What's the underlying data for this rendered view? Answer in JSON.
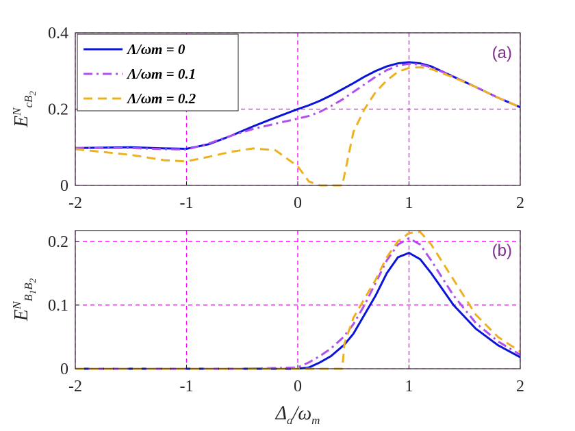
{
  "chart_data": [
    {
      "type": "line",
      "annotation": "(a)",
      "annotation_color": "#7e2f8e",
      "ylabel": [
        {
          "text": "E"
        },
        {
          "text": "N",
          "role": "sup"
        },
        {
          "text": "cB",
          "role": "sub"
        },
        {
          "text": "2",
          "role": "subsub"
        }
      ],
      "x": [
        -2,
        -1.5,
        -1.2,
        -1,
        -0.8,
        -0.6,
        -0.4,
        -0.2,
        0,
        0.1,
        0.2,
        0.3,
        0.4,
        0.5,
        0.6,
        0.7,
        0.8,
        0.9,
        1,
        1.1,
        1.2,
        1.4,
        1.6,
        1.8,
        2
      ],
      "series": [
        {
          "name": "Λ/ωm = 0",
          "color": "#0a14d8",
          "linestyle": "-",
          "values": [
            0.098,
            0.1,
            0.097,
            0.096,
            0.108,
            0.13,
            0.155,
            0.178,
            0.2,
            0.21,
            0.222,
            0.236,
            0.252,
            0.268,
            0.285,
            0.3,
            0.312,
            0.32,
            0.323,
            0.32,
            0.312,
            0.285,
            0.258,
            0.23,
            0.205
          ]
        },
        {
          "name": "Λ/ωm = 0.1",
          "color": "#b04ef0",
          "linestyle": "-.",
          "values": [
            0.098,
            0.098,
            0.095,
            0.094,
            0.11,
            0.13,
            0.148,
            0.162,
            0.175,
            0.182,
            0.193,
            0.208,
            0.225,
            0.245,
            0.265,
            0.285,
            0.302,
            0.314,
            0.319,
            0.317,
            0.31,
            0.285,
            0.258,
            0.23,
            0.205
          ]
        },
        {
          "name": "Λ/ωm = 0.2",
          "color": "#edb120",
          "linestyle": "--",
          "values": [
            0.095,
            0.08,
            0.066,
            0.063,
            0.075,
            0.088,
            0.097,
            0.092,
            0.05,
            0.01,
            0,
            0,
            0,
            0.14,
            0.2,
            0.245,
            0.275,
            0.298,
            0.308,
            0.31,
            0.305,
            0.283,
            0.258,
            0.23,
            0.205
          ]
        }
      ],
      "xlim": [
        -2,
        2
      ],
      "xticks": [
        -2,
        -1,
        0,
        1,
        2
      ],
      "ylim": [
        0,
        0.4
      ],
      "yticks": [
        0,
        0.2,
        0.4
      ],
      "grid": true,
      "grid_color": "#ff00ff",
      "legend": "upper left"
    },
    {
      "type": "line",
      "annotation": "(b)",
      "annotation_color": "#7e2f8e",
      "ylabel": [
        {
          "text": "E"
        },
        {
          "text": "N",
          "role": "sup"
        },
        {
          "text": "B",
          "role": "sub"
        },
        {
          "text": "1",
          "role": "subsub"
        },
        {
          "text": "B",
          "role": "sub"
        },
        {
          "text": "2",
          "role": "subsub"
        }
      ],
      "xlabel": [
        {
          "text": "Δ"
        },
        {
          "text": "a",
          "role": "sub"
        },
        {
          "text": "/ω"
        },
        {
          "text": "m",
          "role": "sub"
        }
      ],
      "x": [
        -2,
        -1.5,
        -1,
        -0.5,
        0,
        0.1,
        0.2,
        0.3,
        0.4,
        0.42,
        0.5,
        0.6,
        0.7,
        0.8,
        0.9,
        1,
        1.1,
        1.2,
        1.4,
        1.6,
        1.8,
        2
      ],
      "series": [
        {
          "name": "Λ/ωm = 0",
          "color": "#0a14d8",
          "linestyle": "-",
          "values": [
            0,
            0,
            0,
            0,
            0,
            0.002,
            0.01,
            0.02,
            0.035,
            0.038,
            0.055,
            0.085,
            0.115,
            0.15,
            0.175,
            0.182,
            0.172,
            0.15,
            0.1,
            0.063,
            0.037,
            0.018
          ]
        },
        {
          "name": "Λ/ωm = 0.1",
          "color": "#b04ef0",
          "linestyle": "-.",
          "values": [
            0,
            0,
            0,
            0,
            0.002,
            0.01,
            0.02,
            0.032,
            0.048,
            0.052,
            0.07,
            0.1,
            0.135,
            0.17,
            0.195,
            0.205,
            0.195,
            0.17,
            0.115,
            0.072,
            0.043,
            0.022
          ]
        },
        {
          "name": "Λ/ωm = 0.2",
          "color": "#edb120",
          "linestyle": "--",
          "values": [
            0,
            0,
            0,
            0,
            0,
            0,
            0,
            0,
            0,
            0.04,
            0.08,
            0.11,
            0.14,
            0.175,
            0.2,
            0.213,
            0.215,
            0.195,
            0.14,
            0.085,
            0.05,
            0.027
          ]
        }
      ],
      "xlim": [
        -2,
        2
      ],
      "xticks": [
        -2,
        -1,
        0,
        1,
        2
      ],
      "ylim": [
        0,
        0.217
      ],
      "yticks": [
        0,
        0.1,
        0.2
      ],
      "grid": true,
      "grid_color": "#ff00ff"
    }
  ]
}
